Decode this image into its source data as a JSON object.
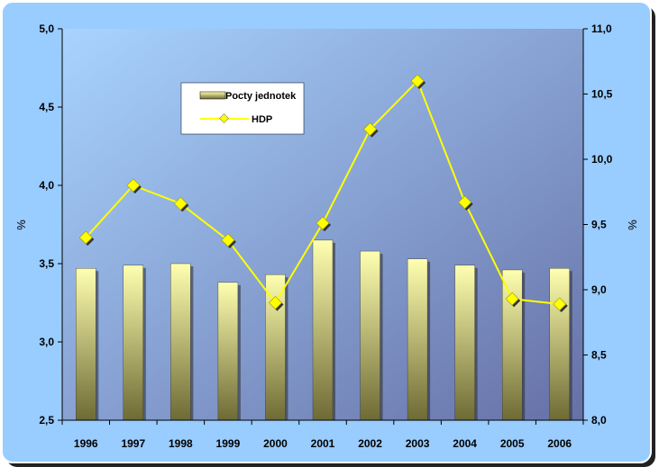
{
  "colors": {
    "frame": "#99ccff",
    "frame_shadow": "#222222",
    "plot_bg_light": "#a9d4ff",
    "plot_bg_dark": "#6670a6",
    "bar_light": "#ffffb0",
    "bar_dark": "#6e6a35",
    "line": "#ffff00",
    "marker": "#ffff00",
    "marker_shadow": "#333333"
  },
  "chart_data": {
    "type": "bar+line",
    "categories": [
      "1996",
      "1997",
      "1998",
      "1999",
      "2000",
      "2001",
      "2002",
      "2003",
      "2004",
      "2005",
      "2006"
    ],
    "series": [
      {
        "name": "Pocty jednotek",
        "type": "bar",
        "axis": "left",
        "values": [
          3.47,
          3.49,
          3.5,
          3.38,
          3.43,
          3.65,
          3.58,
          3.53,
          3.49,
          3.46,
          3.47
        ]
      },
      {
        "name": "HDP",
        "type": "line",
        "axis": "right",
        "values": [
          9.4,
          9.8,
          9.66,
          9.38,
          8.9,
          9.51,
          10.23,
          10.6,
          9.67,
          8.93,
          8.89
        ]
      }
    ],
    "y_left": {
      "label": "%",
      "ylim": [
        2.5,
        5.0
      ],
      "ticks": [
        "2,5",
        "3,0",
        "3,5",
        "4,0",
        "4,5",
        "5,0"
      ]
    },
    "y_right": {
      "label": "%",
      "ylim": [
        8.0,
        11.0
      ],
      "ticks": [
        "8,0",
        "8,5",
        "9,0",
        "9,5",
        "10,0",
        "10,5",
        "11,0"
      ]
    },
    "legend_position": "top-left",
    "grid": false
  }
}
